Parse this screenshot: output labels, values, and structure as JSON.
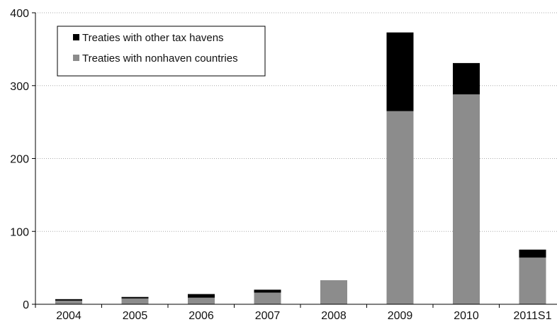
{
  "chart_data": {
    "type": "bar",
    "stacked": true,
    "categories": [
      "2004",
      "2005",
      "2006",
      "2007",
      "2008",
      "2009",
      "2010",
      "2011S1"
    ],
    "series": [
      {
        "name": "Treaties with nonhaven countries",
        "color": "#8c8c8c",
        "values": [
          5,
          8,
          9,
          16,
          33,
          265,
          288,
          64
        ]
      },
      {
        "name": "Treaties with other tax havens",
        "color": "#000000",
        "values": [
          2,
          2,
          5,
          4,
          0,
          108,
          43,
          11
        ]
      }
    ],
    "legend_order": [
      1,
      0
    ],
    "legend_placement": "top-left",
    "ylim": [
      0,
      400
    ],
    "yticks": [
      0,
      100,
      200,
      300,
      400
    ],
    "ytick_labels": [
      "0",
      "100",
      "200",
      "300",
      "400"
    ],
    "grid": {
      "y": true,
      "style": "dotted"
    },
    "title": "",
    "xlabel": "",
    "ylabel": ""
  }
}
